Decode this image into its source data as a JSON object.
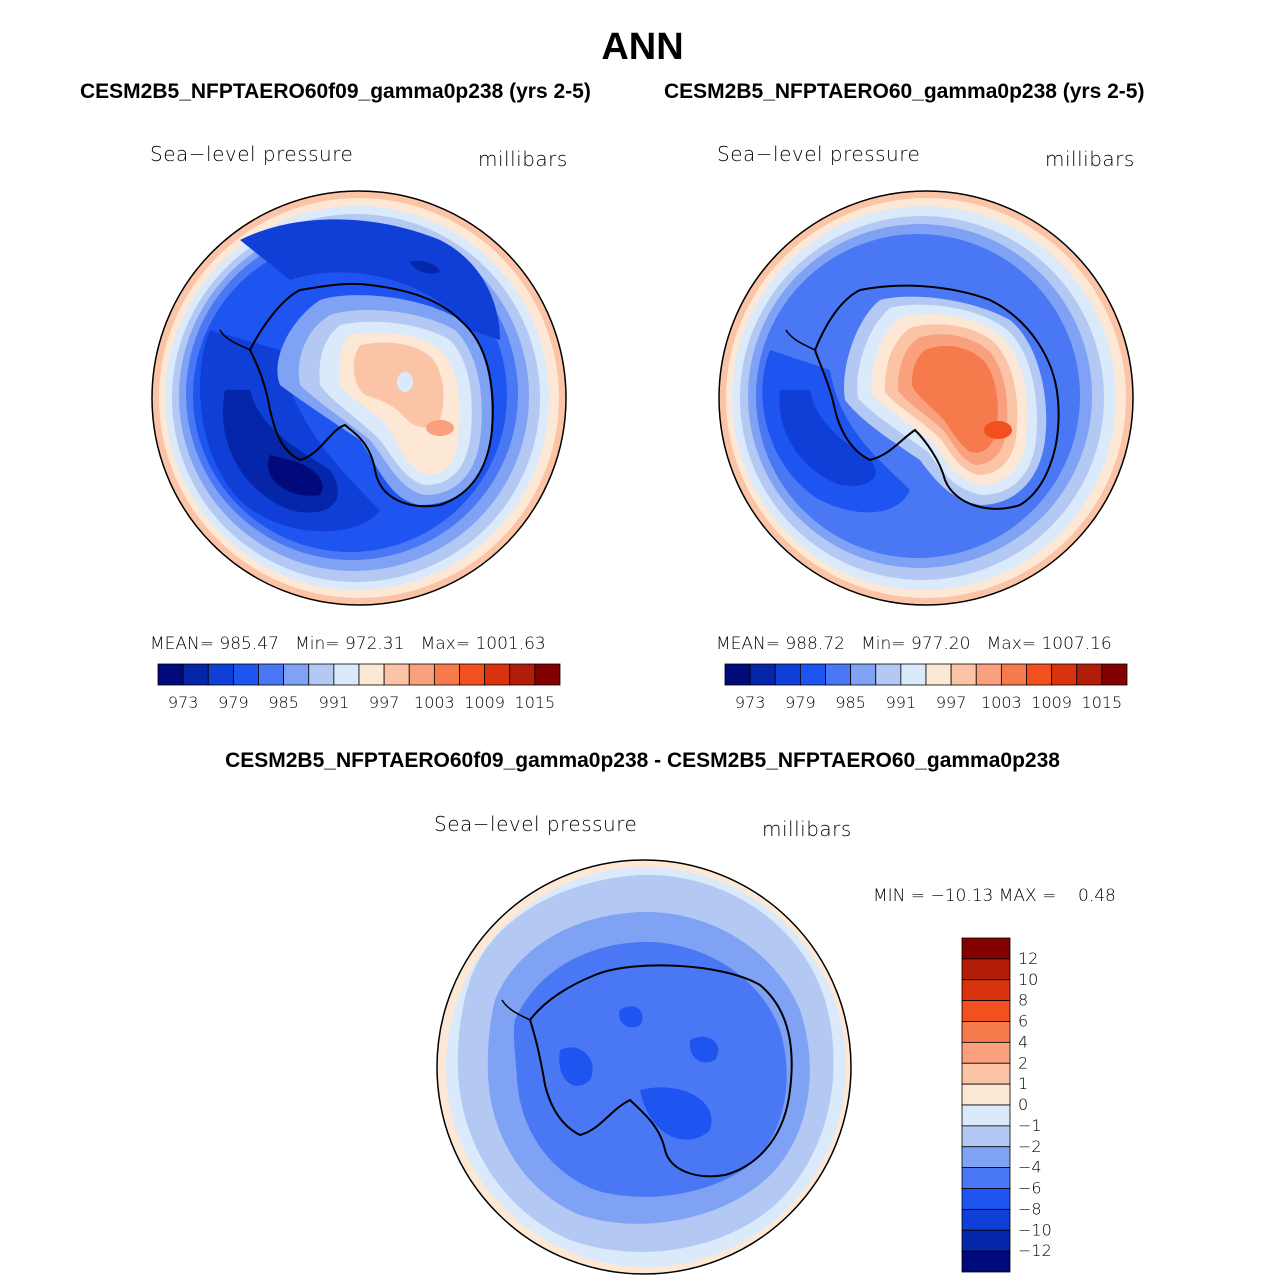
{
  "page": {
    "title": "ANN",
    "left_title": "CESM2B5_NFPTAERO60f09_gamma0p238 (yrs 2-5)",
    "right_title": "CESM2B5_NFPTAERO60_gamma0p238 (yrs 2-5)",
    "diff_title": "CESM2B5_NFPTAERO60f09_gamma0p238 - CESM2B5_NFPTAERO60_gamma0p238"
  },
  "colors": {
    "main_scale": [
      "#000a7a",
      "#0526a8",
      "#0f3fd6",
      "#1e55f0",
      "#4a78f5",
      "#7fa2f5",
      "#b3c8f3",
      "#daeafa",
      "#fde8d5",
      "#fcc4a6",
      "#f9a07e",
      "#f67a4c",
      "#f2501e",
      "#d8320e",
      "#b21d0a",
      "#820000"
    ],
    "diff_scale": [
      "#820000",
      "#b21d0a",
      "#d8320e",
      "#f2501e",
      "#f67a4c",
      "#f9a07e",
      "#fcc4a6",
      "#fde8d5",
      "#daeafa",
      "#b3c8f3",
      "#7fa2f5",
      "#4a78f5",
      "#1e55f0",
      "#0f3fd6",
      "#0526a8",
      "#000a7a"
    ]
  },
  "chart_data": [
    {
      "type": "heatmap",
      "projection": "south-polar-stereographic",
      "title": "CESM2B5_NFPTAERO60f09_gamma0p238 (yrs 2-5)",
      "variable": "Sea−level pressure",
      "units": "millibars",
      "stats": {
        "mean_label": "MEAN=",
        "mean": "985.47",
        "min_label": "Min=",
        "min": "972.31",
        "max_label": "Max=",
        "max": "1001.63"
      },
      "colorbar": {
        "orientation": "horizontal",
        "ticks": [
          "973",
          "979",
          "985",
          "991",
          "997",
          "1003",
          "1009",
          "1015"
        ]
      }
    },
    {
      "type": "heatmap",
      "projection": "south-polar-stereographic",
      "title": "CESM2B5_NFPTAERO60_gamma0p238 (yrs 2-5)",
      "variable": "Sea−level pressure",
      "units": "millibars",
      "stats": {
        "mean_label": "MEAN=",
        "mean": "988.72",
        "min_label": "Min=",
        "min": "977.20",
        "max_label": "Max=",
        "max": "1007.16"
      },
      "colorbar": {
        "orientation": "horizontal",
        "ticks": [
          "973",
          "979",
          "985",
          "991",
          "997",
          "1003",
          "1009",
          "1015"
        ]
      }
    },
    {
      "type": "heatmap",
      "projection": "south-polar-stereographic",
      "title": "CESM2B5_NFPTAERO60f09_gamma0p238 - CESM2B5_NFPTAERO60_gamma0p238",
      "variable": "Sea−level pressure",
      "units": "millibars",
      "stats": {
        "text": "MIN = −10.13 MAX =    0.48"
      },
      "colorbar": {
        "orientation": "vertical",
        "ticks": [
          "12",
          "10",
          "8",
          "6",
          "4",
          "2",
          "1",
          "0",
          "−1",
          "−2",
          "−4",
          "−6",
          "−8",
          "−10",
          "−12"
        ]
      }
    }
  ]
}
